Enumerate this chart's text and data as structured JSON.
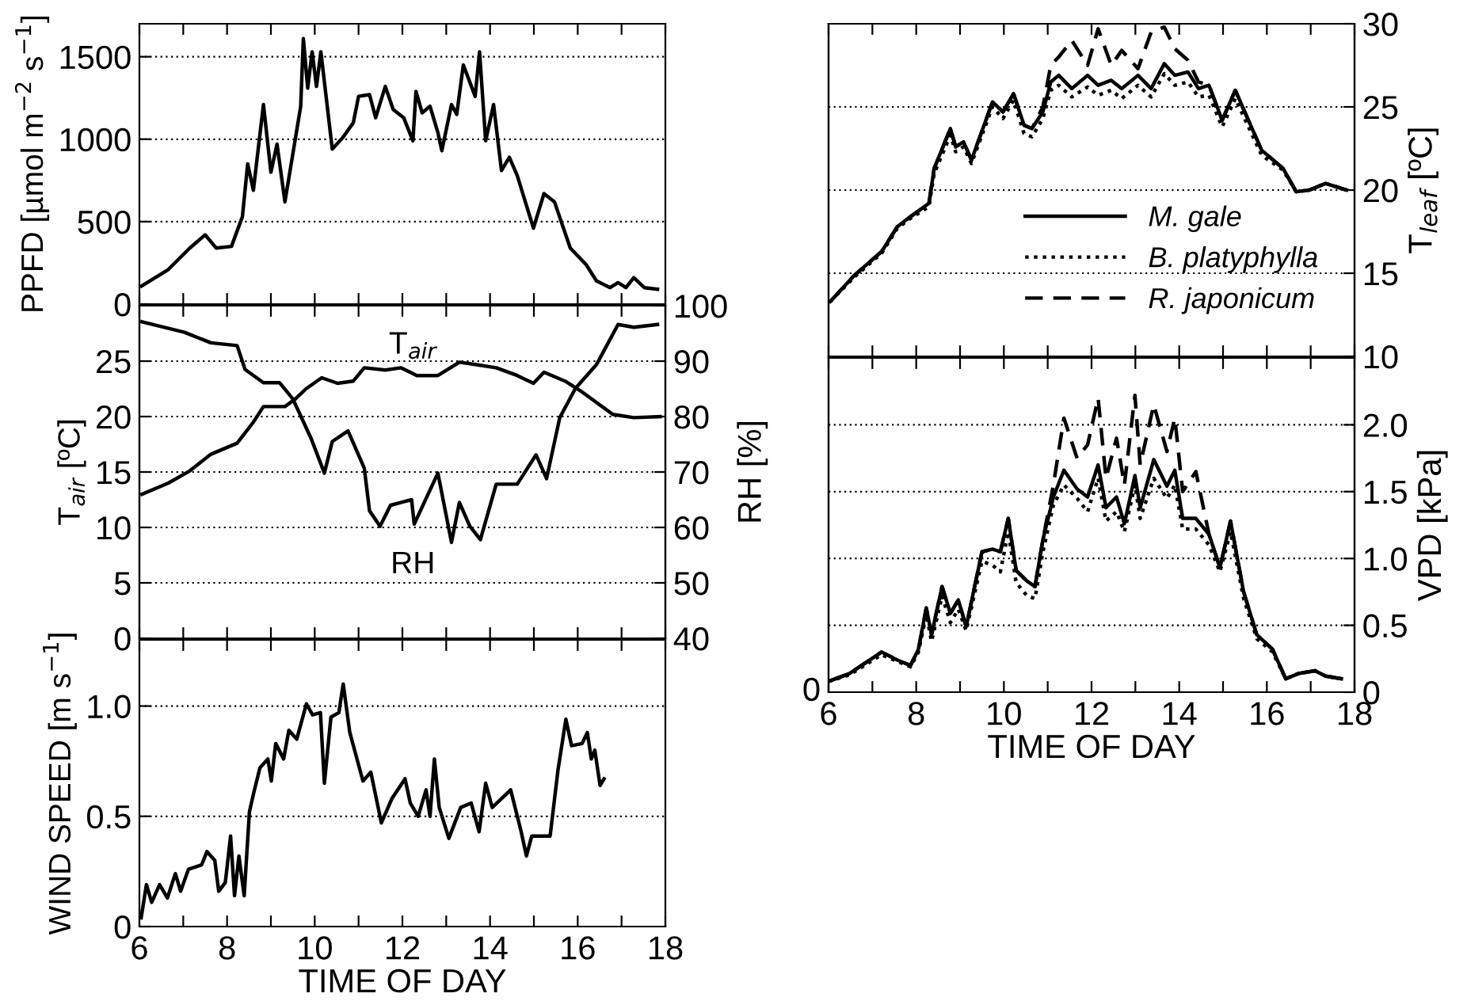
{
  "chart_data": [
    {
      "type": "line",
      "ylabel": "PPFD [µmol m$^{−2}$ s$^{−1}$]",
      "xlim": [
        6,
        18
      ],
      "xticks": [
        6,
        {
          "value": 7,
          "label": null
        },
        8,
        {
          "value": 9,
          "label": null
        },
        10,
        {
          "value": 11,
          "label": null
        },
        12,
        {
          "value": 13,
          "label": null
        },
        14,
        {
          "value": 15,
          "label": null
        },
        16,
        {
          "value": 17,
          "label": null
        },
        18
      ],
      "ylim": [
        0,
        1700
      ],
      "yticks": [
        0,
        500,
        1000,
        1500
      ],
      "grid": "y",
      "tick_labels": "y",
      "line_style": "solid",
      "x": [
        6.05,
        6.66,
        7.15,
        7.5,
        7.75,
        8.1,
        8.35,
        8.47,
        8.6,
        8.83,
        9.0,
        9.14,
        9.32,
        9.68,
        9.74,
        9.84,
        9.94,
        10.04,
        10.14,
        10.4,
        10.64,
        10.88,
        11.0,
        11.25,
        11.39,
        11.61,
        11.79,
        12.03,
        12.15,
        12.24,
        12.31,
        12.45,
        12.63,
        12.81,
        12.9,
        13.12,
        13.24,
        13.39,
        13.66,
        13.76,
        13.9,
        14.08,
        14.26,
        14.44,
        14.62,
        14.99,
        15.23,
        15.47,
        15.83,
        16.19,
        16.43,
        16.74,
        16.92,
        17.1,
        17.28,
        17.52,
        17.82
      ],
      "series": [
        {
          "color": "#000000",
          "values": [
            110,
            210,
            340,
            420,
            340,
            350,
            530,
            850,
            690,
            1210,
            800,
            970,
            620,
            1200,
            1610,
            1310,
            1530,
            1320,
            1530,
            940,
            1010,
            1100,
            1260,
            1270,
            1130,
            1320,
            1180,
            1130,
            1050,
            990,
            1290,
            1160,
            1200,
            1040,
            930,
            1210,
            1150,
            1450,
            1260,
            1530,
            990,
            1210,
            810,
            890,
            780,
            460,
            670,
            620,
            340,
            240,
            140,
            100,
            130,
            100,
            160,
            100,
            90
          ]
        }
      ]
    },
    {
      "type": "line",
      "ylabel": "T$_{air}$ [ºC]",
      "y2label": "RH [%]",
      "xlim": [
        6,
        18
      ],
      "xticks": [
        6,
        {
          "value": 7,
          "label": null
        },
        8,
        {
          "value": 9,
          "label": null
        },
        10,
        {
          "value": 11,
          "label": null
        },
        12,
        {
          "value": 13,
          "label": null
        },
        14,
        {
          "value": 15,
          "label": null
        },
        16,
        {
          "value": 17,
          "label": null
        },
        18
      ],
      "ylim": [
        0,
        30
      ],
      "yticks": [
        0,
        5,
        10,
        15,
        20,
        25
      ],
      "y2lim": [
        40,
        100
      ],
      "y2ticks": [
        40,
        50,
        60,
        70,
        80,
        90,
        100
      ],
      "grid": "y",
      "tick_labels": "y",
      "line_style": "solid",
      "annotations": [
        "T$_{air}$",
        "RH"
      ],
      "series": [
        {
          "color": "#000000",
          "x": [
            6.06,
            6.66,
            7.15,
            7.63,
            8.23,
            8.6,
            8.83,
            9.32,
            9.56,
            9.8,
            10.16,
            10.52,
            10.88,
            11.13,
            11.61,
            11.97,
            12.33,
            12.81,
            13.3,
            13.66,
            14.14,
            14.62,
            14.99,
            15.23,
            15.71,
            16.07,
            16.8,
            17.28,
            17.88
          ],
          "values": [
            13.0,
            14.0,
            15.1,
            16.6,
            17.6,
            19.5,
            20.9,
            20.9,
            21.6,
            22.5,
            23.5,
            23.0,
            23.2,
            24.4,
            24.2,
            24.4,
            23.7,
            23.7,
            24.9,
            24.7,
            24.4,
            23.7,
            23.0,
            24.0,
            23.2,
            22.3,
            20.2,
            19.9,
            20.0
          ]
        },
        {
          "color": "#000000",
          "axis": "y2",
          "x": [
            6.06,
            7.03,
            7.63,
            8.23,
            8.41,
            8.83,
            9.2,
            9.5,
            9.92,
            10.22,
            10.4,
            10.76,
            11.13,
            11.25,
            11.49,
            11.73,
            12.21,
            12.27,
            12.81,
            13.12,
            13.3,
            13.54,
            13.78,
            14.14,
            14.62,
            15.05,
            15.29,
            15.59,
            15.95,
            16.43,
            16.92,
            17.28,
            17.82
          ],
          "values": [
            97.1,
            95.2,
            93.3,
            92.8,
            88.5,
            86.1,
            86.1,
            83.2,
            76.0,
            69.8,
            75.5,
            77.4,
            70.7,
            63.0,
            60.2,
            64.0,
            65.0,
            60.6,
            69.8,
            57.3,
            64.5,
            60.2,
            57.8,
            67.8,
            67.8,
            73.1,
            68.8,
            79.8,
            85.1,
            89.4,
            96.6,
            96.1,
            96.6
          ]
        }
      ]
    },
    {
      "type": "line",
      "ylabel": "WIND SPEED [m s$^{−1}$]",
      "xlabel": "TIME OF DAY",
      "xlim": [
        6,
        18
      ],
      "xticks": [
        6,
        {
          "value": 7,
          "label": null
        },
        8,
        {
          "value": 9,
          "label": null
        },
        10,
        {
          "value": 11,
          "label": null
        },
        12,
        {
          "value": 13,
          "label": null
        },
        14,
        {
          "value": 15,
          "label": null
        },
        16,
        {
          "value": 17,
          "label": null
        },
        18
      ],
      "ylim": [
        0,
        1.3
      ],
      "yticks": [
        0,
        0.5,
        {
          "value": 1,
          "label": "1.0"
        }
      ],
      "grid": "y",
      "line_style": "solid",
      "x": [
        6.04,
        6.16,
        6.28,
        6.46,
        6.64,
        6.82,
        6.94,
        7.12,
        7.42,
        7.54,
        7.72,
        7.81,
        7.96,
        8.08,
        8.17,
        8.27,
        8.39,
        8.51,
        8.6,
        8.75,
        8.93,
        9.01,
        9.11,
        9.29,
        9.41,
        9.59,
        9.81,
        9.95,
        10.13,
        10.22,
        10.37,
        10.55,
        10.65,
        10.8,
        11.1,
        11.28,
        11.52,
        11.76,
        12.06,
        12.18,
        12.36,
        12.54,
        12.63,
        12.73,
        12.84,
        13.06,
        13.33,
        13.57,
        13.75,
        13.9,
        14.05,
        14.47,
        14.71,
        14.83,
        14.95,
        15.37,
        15.55,
        15.73,
        15.86,
        16.1,
        16.22,
        16.31,
        16.39,
        16.51,
        16.6
      ],
      "series": [
        {
          "color": "#000000",
          "values": [
            0.04,
            0.19,
            0.11,
            0.19,
            0.13,
            0.24,
            0.16,
            0.26,
            0.28,
            0.34,
            0.3,
            0.16,
            0.2,
            0.41,
            0.14,
            0.32,
            0.14,
            0.52,
            0.6,
            0.72,
            0.76,
            0.66,
            0.83,
            0.76,
            0.89,
            0.85,
            1.01,
            0.96,
            0.97,
            0.65,
            0.95,
            0.97,
            1.1,
            0.88,
            0.66,
            0.7,
            0.47,
            0.58,
            0.67,
            0.56,
            0.5,
            0.62,
            0.5,
            0.76,
            0.54,
            0.4,
            0.54,
            0.56,
            0.43,
            0.65,
            0.54,
            0.62,
            0.43,
            0.32,
            0.41,
            0.41,
            0.71,
            0.94,
            0.82,
            0.83,
            0.88,
            0.76,
            0.8,
            0.64,
            0.67
          ]
        }
      ]
    },
    {
      "type": "line",
      "y2label": "T$_{leaf}$ [ºC]",
      "xlim": [
        6,
        18
      ],
      "xticks": [
        6,
        {
          "value": 7,
          "label": null
        },
        8,
        {
          "value": 9,
          "label": null
        },
        10,
        {
          "value": 11,
          "label": null
        },
        12,
        {
          "value": 13,
          "label": null
        },
        14,
        {
          "value": 15,
          "label": null
        },
        16,
        {
          "value": 17,
          "label": null
        },
        18
      ],
      "y2lim": [
        10,
        30
      ],
      "y2ticks": [
        10,
        15,
        20,
        25,
        30
      ],
      "grid": "y",
      "tick_labels": "y",
      "legend": "bottom right",
      "x": [
        6.04,
        6.6,
        7.21,
        7.57,
        7.87,
        8.29,
        8.41,
        8.78,
        8.9,
        9.08,
        9.26,
        9.74,
        9.98,
        10.22,
        10.46,
        10.64,
        10.89,
        11.07,
        11.25,
        11.55,
        11.91,
        12.15,
        12.45,
        12.69,
        13.06,
        13.36,
        13.66,
        13.9,
        14.2,
        14.44,
        14.68,
        14.98,
        15.28,
        15.58,
        15.88,
        16.37,
        16.67,
        16.97,
        17.34,
        17.82
      ],
      "series": [
        {
          "name": "M. gale",
          "color": "#000000",
          "axis": "y2",
          "line_style": "solid",
          "values": [
            13.3,
            14.9,
            16.3,
            17.8,
            18.4,
            19.2,
            21.3,
            23.7,
            22.6,
            22.9,
            21.8,
            25.3,
            24.7,
            25.8,
            23.9,
            23.7,
            24.7,
            26.5,
            26.9,
            26.1,
            26.9,
            26.3,
            26.6,
            26.1,
            26.9,
            26.1,
            27.6,
            26.9,
            27.1,
            26.1,
            26.3,
            24.2,
            26.0,
            24.2,
            22.4,
            21.3,
            19.9,
            20.0,
            20.4,
            20.0
          ]
        },
        {
          "name": "B. platyphylla",
          "color": "#000000",
          "axis": "y2",
          "line_style": "dotted",
          "values": [
            13.3,
            14.8,
            16.2,
            17.7,
            18.3,
            19.0,
            21.0,
            23.3,
            22.3,
            22.6,
            21.6,
            25.0,
            24.3,
            25.4,
            23.4,
            23.2,
            24.3,
            26.0,
            26.3,
            25.6,
            26.2,
            25.7,
            26.0,
            25.5,
            26.3,
            25.6,
            27.0,
            26.3,
            26.5,
            25.6,
            25.7,
            23.8,
            25.5,
            23.8,
            22.1,
            21.2,
            19.9,
            20.0,
            20.4,
            20.0
          ]
        },
        {
          "name": "R. japonicum",
          "color": "#000000",
          "axis": "y2",
          "line_style": "dashed",
          "values": [
            13.3,
            14.9,
            16.3,
            17.8,
            18.4,
            19.2,
            21.3,
            23.7,
            22.6,
            22.9,
            21.8,
            25.3,
            24.7,
            25.8,
            23.9,
            23.7,
            25.0,
            27.5,
            28.0,
            29.0,
            27.5,
            29.7,
            27.5,
            28.4,
            27.3,
            29.5,
            29.8,
            28.5,
            27.8,
            26.5,
            26.3,
            24.2,
            26.0,
            24.2,
            22.4,
            21.3,
            19.9,
            20.0,
            20.4,
            20.0
          ]
        }
      ]
    },
    {
      "type": "line",
      "xlabel": "TIME OF DAY",
      "y2label": "VPD [kPa]",
      "xlim": [
        6,
        18
      ],
      "xticks": [
        6,
        {
          "value": 7,
          "label": null
        },
        8,
        {
          "value": 9,
          "label": null
        },
        10,
        {
          "value": 11,
          "label": null
        },
        12,
        {
          "value": 13,
          "label": null
        },
        14,
        {
          "value": 15,
          "label": null
        },
        16,
        {
          "value": 17,
          "label": null
        },
        18
      ],
      "annotations": [
        "0"
      ],
      "y2lim": [
        0,
        2.5
      ],
      "y2ticks": [
        0,
        0.5,
        {
          "value": 1,
          "label": "1.0"
        },
        1.5,
        {
          "value": 2,
          "label": "2.0"
        }
      ],
      "grid": "y",
      "x": [
        6.0,
        6.48,
        7.21,
        7.57,
        7.87,
        8.05,
        8.23,
        8.35,
        8.59,
        8.78,
        8.96,
        9.14,
        9.5,
        9.74,
        9.92,
        10.1,
        10.28,
        10.53,
        10.71,
        10.89,
        11.13,
        11.37,
        11.67,
        11.91,
        12.15,
        12.33,
        12.57,
        12.75,
        12.99,
        13.11,
        13.42,
        13.72,
        13.9,
        14.08,
        14.38,
        14.68,
        14.93,
        15.17,
        15.47,
        15.77,
        16.13,
        16.43,
        16.73,
        17.1,
        17.34,
        17.7
      ],
      "series": [
        {
          "color": "#000000",
          "axis": "y2",
          "line_style": "solid",
          "values": [
            0.08,
            0.14,
            0.3,
            0.24,
            0.2,
            0.32,
            0.63,
            0.43,
            0.79,
            0.59,
            0.69,
            0.49,
            1.05,
            1.07,
            1.05,
            1.3,
            0.91,
            0.83,
            0.79,
            1.14,
            1.46,
            1.66,
            1.52,
            1.46,
            1.7,
            1.38,
            1.46,
            1.26,
            1.62,
            1.38,
            1.74,
            1.54,
            1.66,
            1.3,
            1.3,
            1.18,
            0.93,
            1.28,
            0.75,
            0.43,
            0.32,
            0.1,
            0.14,
            0.16,
            0.12,
            0.1
          ]
        },
        {
          "color": "#000000",
          "axis": "y2",
          "line_style": "dotted",
          "values": [
            0.08,
            0.13,
            0.28,
            0.23,
            0.19,
            0.3,
            0.58,
            0.38,
            0.72,
            0.52,
            0.62,
            0.46,
            0.98,
            0.95,
            0.9,
            1.2,
            0.82,
            0.72,
            0.7,
            1.05,
            1.4,
            1.55,
            1.45,
            1.35,
            1.6,
            1.28,
            1.35,
            1.2,
            1.55,
            1.3,
            1.6,
            1.45,
            1.55,
            1.22,
            1.22,
            1.1,
            0.9,
            1.2,
            0.7,
            0.4,
            0.3,
            0.1,
            0.14,
            0.16,
            0.12,
            0.1
          ]
        },
        {
          "color": "#000000",
          "axis": "y2",
          "line_style": "dashed",
          "values": [
            0.08,
            0.14,
            0.3,
            0.24,
            0.2,
            0.32,
            0.63,
            0.43,
            0.79,
            0.59,
            0.69,
            0.49,
            1.05,
            1.07,
            1.05,
            1.3,
            0.91,
            0.83,
            0.79,
            1.14,
            1.55,
            2.05,
            1.75,
            1.85,
            2.2,
            1.6,
            1.9,
            1.55,
            2.22,
            1.7,
            2.15,
            1.8,
            2.05,
            1.5,
            1.65,
            1.18,
            0.93,
            1.28,
            0.75,
            0.43,
            0.32,
            0.1,
            0.14,
            0.16,
            0.12,
            0.1
          ]
        }
      ]
    }
  ]
}
